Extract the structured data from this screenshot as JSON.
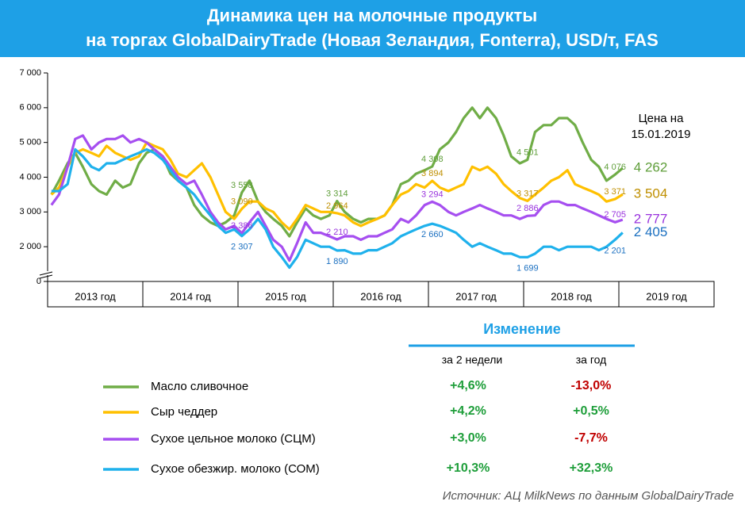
{
  "chart_data": {
    "type": "line",
    "title": [
      "Динамика цен на молочные продукты",
      "на торгах GlobalDairyTrade (Новая Зеландия, Fonterra), USD/т, FAS"
    ],
    "annotation": [
      "Цена на",
      "15.01.2019"
    ],
    "source": "Источник: АЦ MilkNews по данным GlobalDairyTrade",
    "xlim": [
      2013,
      2020
    ],
    "xticks": [
      {
        "value": 2013,
        "label": "2013 год"
      },
      {
        "value": 2014,
        "label": "2014 год"
      },
      {
        "value": 2015,
        "label": "2015 год"
      },
      {
        "value": 2016,
        "label": "2016 год"
      },
      {
        "value": 2017,
        "label": "2017 год"
      },
      {
        "value": 2018,
        "label": "2018 год"
      },
      {
        "value": 2019,
        "label": "2019 год"
      }
    ],
    "ylim": [
      0,
      7000
    ],
    "axis_break": true,
    "yticks": [
      0,
      {
        "value": 2000,
        "label": "2 000"
      },
      {
        "value": 3000,
        "label": "3 000"
      },
      {
        "value": 4000,
        "label": "4 000"
      },
      {
        "value": 5000,
        "label": "5 000"
      },
      {
        "value": 6000,
        "label": "6 000"
      },
      {
        "value": 7000,
        "label": "7 000"
      }
    ],
    "x": [
      2013.04,
      2013.12,
      2013.21,
      2013.29,
      2013.37,
      2013.46,
      2013.54,
      2013.62,
      2013.71,
      2013.79,
      2013.87,
      2013.96,
      2014.04,
      2014.12,
      2014.21,
      2014.29,
      2014.37,
      2014.46,
      2014.54,
      2014.62,
      2014.71,
      2014.79,
      2014.87,
      2014.96,
      2015.04,
      2015.12,
      2015.21,
      2015.29,
      2015.37,
      2015.46,
      2015.54,
      2015.62,
      2015.71,
      2015.79,
      2015.87,
      2015.96,
      2016.04,
      2016.12,
      2016.21,
      2016.29,
      2016.37,
      2016.46,
      2016.54,
      2016.62,
      2016.71,
      2016.79,
      2016.87,
      2016.96,
      2017.04,
      2017.12,
      2017.21,
      2017.29,
      2017.37,
      2017.46,
      2017.54,
      2017.62,
      2017.71,
      2017.79,
      2017.87,
      2017.96,
      2018.04,
      2018.12,
      2018.21,
      2018.29,
      2018.37,
      2018.46,
      2018.54,
      2018.62,
      2018.71,
      2018.79,
      2018.87,
      2018.96,
      2019.04
    ],
    "series": [
      {
        "name": "Масло сливочное",
        "color": "#70ad47",
        "label_color": "#5f9e3a",
        "changes": [
          "+4,6%",
          "-13,0%"
        ],
        "values": [
          3500,
          3900,
          4400,
          4700,
          4300,
          3800,
          3600,
          3500,
          3900,
          3700,
          3800,
          4400,
          4700,
          4800,
          4600,
          4100,
          3900,
          3700,
          3200,
          2900,
          2700,
          2600,
          2700,
          2900,
          3558,
          3900,
          3300,
          3000,
          2800,
          2600,
          2300,
          2700,
          3100,
          2900,
          2800,
          2900,
          3314,
          3000,
          2800,
          2700,
          2800,
          2800,
          2900,
          3200,
          3800,
          3900,
          4100,
          4200,
          4308,
          4800,
          5000,
          5300,
          5700,
          6000,
          5700,
          6000,
          5700,
          5200,
          4600,
          4400,
          4501,
          5300,
          5500,
          5500,
          5700,
          5700,
          5500,
          5000,
          4500,
          4300,
          3900,
          4076,
          4262
        ],
        "value_labels": [
          null,
          null,
          null,
          null,
          null,
          null,
          null,
          null,
          null,
          null,
          null,
          null,
          null,
          null,
          null,
          null,
          null,
          null,
          null,
          null,
          null,
          null,
          null,
          null,
          "3 558",
          null,
          null,
          null,
          null,
          null,
          null,
          null,
          null,
          null,
          null,
          null,
          "3 314",
          null,
          null,
          null,
          null,
          null,
          null,
          null,
          null,
          null,
          null,
          null,
          "4 308",
          null,
          null,
          null,
          null,
          null,
          null,
          null,
          null,
          null,
          null,
          null,
          "4 501",
          null,
          null,
          null,
          null,
          null,
          null,
          null,
          null,
          null,
          null,
          "4 076",
          "4 262"
        ]
      },
      {
        "name": "Сыр чеддер",
        "color": "#ffc000",
        "label_color": "#bf8f00",
        "changes": [
          "+4,2%",
          "+0,5%"
        ],
        "values": [
          3500,
          3700,
          4300,
          4700,
          4800,
          4700,
          4600,
          4900,
          4700,
          4600,
          4500,
          4600,
          5000,
          4900,
          4800,
          4500,
          4100,
          4000,
          4200,
          4400,
          4000,
          3500,
          3000,
          2800,
          3090,
          3300,
          3300,
          3100,
          3000,
          2700,
          2500,
          2800,
          3200,
          3100,
          3000,
          3000,
          2964,
          2900,
          2700,
          2600,
          2700,
          2800,
          2900,
          3200,
          3500,
          3600,
          3800,
          3700,
          3894,
          3700,
          3600,
          3700,
          3800,
          4300,
          4200,
          4300,
          4100,
          3800,
          3600,
          3400,
          3317,
          3500,
          3700,
          3900,
          4000,
          4200,
          3800,
          3700,
          3600,
          3500,
          3300,
          3371,
          3504
        ],
        "value_labels": [
          null,
          null,
          null,
          null,
          null,
          null,
          null,
          null,
          null,
          null,
          null,
          null,
          null,
          null,
          null,
          null,
          null,
          null,
          null,
          null,
          null,
          null,
          null,
          null,
          "3 090",
          null,
          null,
          null,
          null,
          null,
          null,
          null,
          null,
          null,
          null,
          null,
          "2 964",
          null,
          null,
          null,
          null,
          null,
          null,
          null,
          null,
          null,
          null,
          null,
          "3 894",
          null,
          null,
          null,
          null,
          null,
          null,
          null,
          null,
          null,
          null,
          null,
          "3 317",
          null,
          null,
          null,
          null,
          null,
          null,
          null,
          null,
          null,
          null,
          "3 371",
          "3 504"
        ]
      },
      {
        "name": "Сухое цельное молоко (СЦМ)",
        "color": "#a64ff0",
        "label_color": "#9933dd",
        "changes": [
          "+3,0%",
          "-7,7%"
        ],
        "values": [
          3200,
          3500,
          4300,
          5100,
          5200,
          4800,
          5000,
          5100,
          5100,
          5200,
          5000,
          5100,
          5000,
          4800,
          4600,
          4300,
          4000,
          3800,
          3900,
          3500,
          3000,
          2700,
          2500,
          2600,
          2386,
          2700,
          3000,
          2600,
          2200,
          2000,
          1600,
          2100,
          2700,
          2400,
          2400,
          2300,
          2210,
          2300,
          2300,
          2200,
          2300,
          2300,
          2400,
          2500,
          2800,
          2700,
          2900,
          3200,
          3294,
          3200,
          3000,
          2900,
          3000,
          3100,
          3200,
          3100,
          3000,
          2900,
          2900,
          2800,
          2886,
          2900,
          3200,
          3300,
          3300,
          3200,
          3200,
          3100,
          3000,
          2900,
          2800,
          2705,
          2777
        ],
        "value_labels": [
          null,
          null,
          null,
          null,
          null,
          null,
          null,
          null,
          null,
          null,
          null,
          null,
          null,
          null,
          null,
          null,
          null,
          null,
          null,
          null,
          null,
          null,
          null,
          null,
          "2 386",
          null,
          null,
          null,
          null,
          null,
          null,
          null,
          null,
          null,
          null,
          null,
          "2 210",
          null,
          null,
          null,
          null,
          null,
          null,
          null,
          null,
          null,
          null,
          null,
          "3 294",
          null,
          null,
          null,
          null,
          null,
          null,
          null,
          null,
          null,
          null,
          null,
          "2 886",
          null,
          null,
          null,
          null,
          null,
          null,
          null,
          null,
          null,
          null,
          "2 705",
          "2 777"
        ]
      },
      {
        "name": "Сухое обезжир. молоко (СОМ)",
        "color": "#1fb1ec",
        "label_color": "#1a6fc0",
        "changes": [
          "+10,3%",
          "+32,3%"
        ],
        "values": [
          3600,
          3600,
          3800,
          4800,
          4600,
          4300,
          4200,
          4400,
          4400,
          4500,
          4600,
          4700,
          4800,
          4700,
          4500,
          4200,
          3900,
          3700,
          3500,
          3200,
          2900,
          2600,
          2400,
          2500,
          2307,
          2500,
          2800,
          2500,
          2000,
          1700,
          1400,
          1700,
          2200,
          2100,
          2000,
          2000,
          1890,
          1900,
          1800,
          1800,
          1900,
          1900,
          2000,
          2100,
          2300,
          2400,
          2500,
          2600,
          2660,
          2600,
          2500,
          2400,
          2200,
          2000,
          2100,
          2000,
          1900,
          1800,
          1800,
          1700,
          1699,
          1800,
          2000,
          2000,
          1900,
          2000,
          2000,
          2000,
          2000,
          1900,
          2000,
          2201,
          2405
        ],
        "value_labels": [
          null,
          null,
          null,
          null,
          null,
          null,
          null,
          null,
          null,
          null,
          null,
          null,
          null,
          null,
          null,
          null,
          null,
          null,
          null,
          null,
          null,
          null,
          null,
          null,
          "2 307",
          null,
          null,
          null,
          null,
          null,
          null,
          null,
          null,
          null,
          null,
          null,
          "1 890",
          null,
          null,
          null,
          null,
          null,
          null,
          null,
          null,
          null,
          null,
          null,
          "2 660",
          null,
          null,
          null,
          null,
          null,
          null,
          null,
          null,
          null,
          null,
          null,
          "1 699",
          null,
          null,
          null,
          null,
          null,
          null,
          null,
          null,
          null,
          null,
          "2 201",
          "2 405"
        ]
      }
    ],
    "table": {
      "title": "Изменение",
      "columns": [
        "за 2 недели",
        "за год"
      ],
      "positive_color": "#1e9e3a",
      "negative_color": "#c00000"
    }
  }
}
